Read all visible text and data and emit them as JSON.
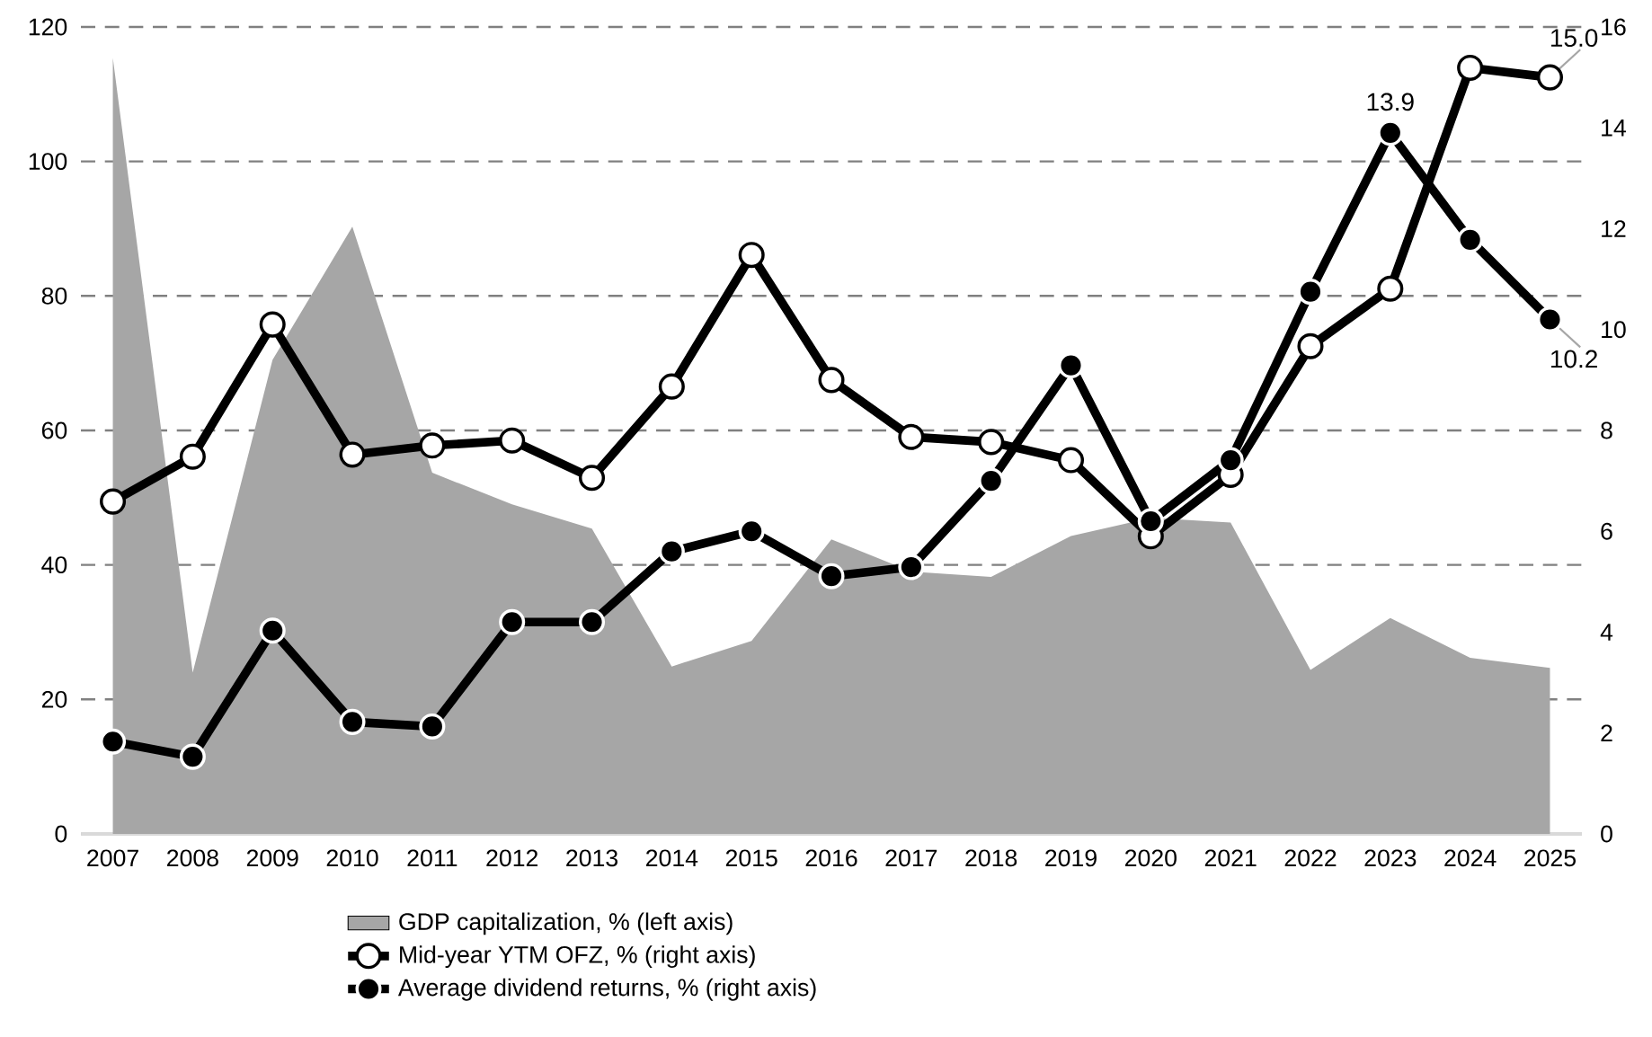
{
  "chart_data": {
    "type": "line",
    "categories": [
      "2007",
      "2008",
      "2009",
      "2010",
      "2011",
      "2012",
      "2013",
      "2014",
      "2015",
      "2016",
      "2017",
      "2018",
      "2019",
      "2020",
      "2021",
      "2022",
      "2023",
      "2024",
      "2025"
    ],
    "series": [
      {
        "name": "GDP capitalization, % (left axis)",
        "type": "area",
        "color": "#a6a6a6",
        "values": [
          115.4,
          24,
          70.5,
          90.3,
          53.7,
          49,
          45.4,
          24.9,
          28.7,
          43.8,
          39,
          38.2,
          44.3,
          47,
          46.3,
          24.4,
          32.1,
          26.2,
          24.7
        ]
      },
      {
        "name": "Mid-year YTM OFZ, % (right axis)",
        "axis": "y2",
        "marker": "circle",
        "color": "#000000",
        "colors": [
          "#ffffff",
          "#ffffff",
          "#ffffff",
          "#ffffff",
          "#ffffff",
          "#ffffff",
          "#ffffff",
          "#ffffff",
          "#ffffff",
          "#ffffff",
          "#ffffff",
          "#ffffff",
          "#ffffff",
          "#ffffff",
          "#ffffff",
          "#ffffff",
          "#ffffff",
          "#ffffff",
          "#ffffff"
        ],
        "values": [
          6.59,
          7.48,
          10.1,
          7.52,
          7.7,
          7.8,
          7.06,
          8.87,
          11.48,
          9.0,
          7.87,
          7.77,
          7.41,
          5.9,
          7.12,
          9.67,
          10.81,
          15.19,
          15.0
        ],
        "value_labels": [
          null,
          null,
          null,
          null,
          null,
          null,
          null,
          null,
          null,
          null,
          null,
          null,
          null,
          null,
          null,
          null,
          null,
          null,
          "15.0"
        ]
      },
      {
        "name": "Average dividend returns, % (right axis)",
        "axis": "y2",
        "marker": "circle",
        "color": "#000000",
        "colors": [
          "#000000",
          "#000000",
          "#000000",
          "#000000",
          "#000000",
          "#000000",
          "#000000",
          "#000000",
          "#000000",
          "#000000",
          "#000000",
          "#000000",
          "#000000",
          "#000000",
          "#000000",
          "#000000",
          "#000000",
          "#000000",
          "#000000"
        ],
        "values": [
          1.83,
          1.53,
          4.03,
          2.22,
          2.13,
          4.2,
          4.2,
          5.6,
          6.0,
          5.11,
          5.29,
          7.0,
          9.29,
          6.2,
          7.41,
          10.75,
          13.9,
          11.78,
          10.2
        ],
        "value_labels": [
          null,
          null,
          null,
          null,
          null,
          null,
          null,
          null,
          null,
          null,
          null,
          null,
          null,
          null,
          null,
          null,
          "13.9",
          null,
          "10.2"
        ]
      }
    ],
    "ylim": [
      0,
      120
    ],
    "yticks": [
      0,
      20,
      40,
      60,
      80,
      100,
      120
    ],
    "y2lim": [
      0,
      16
    ],
    "y2ticks": [
      0,
      2,
      4,
      6,
      8,
      10,
      12,
      14,
      16
    ],
    "grid": "y",
    "legend": "bottom",
    "line_style": "solid"
  }
}
